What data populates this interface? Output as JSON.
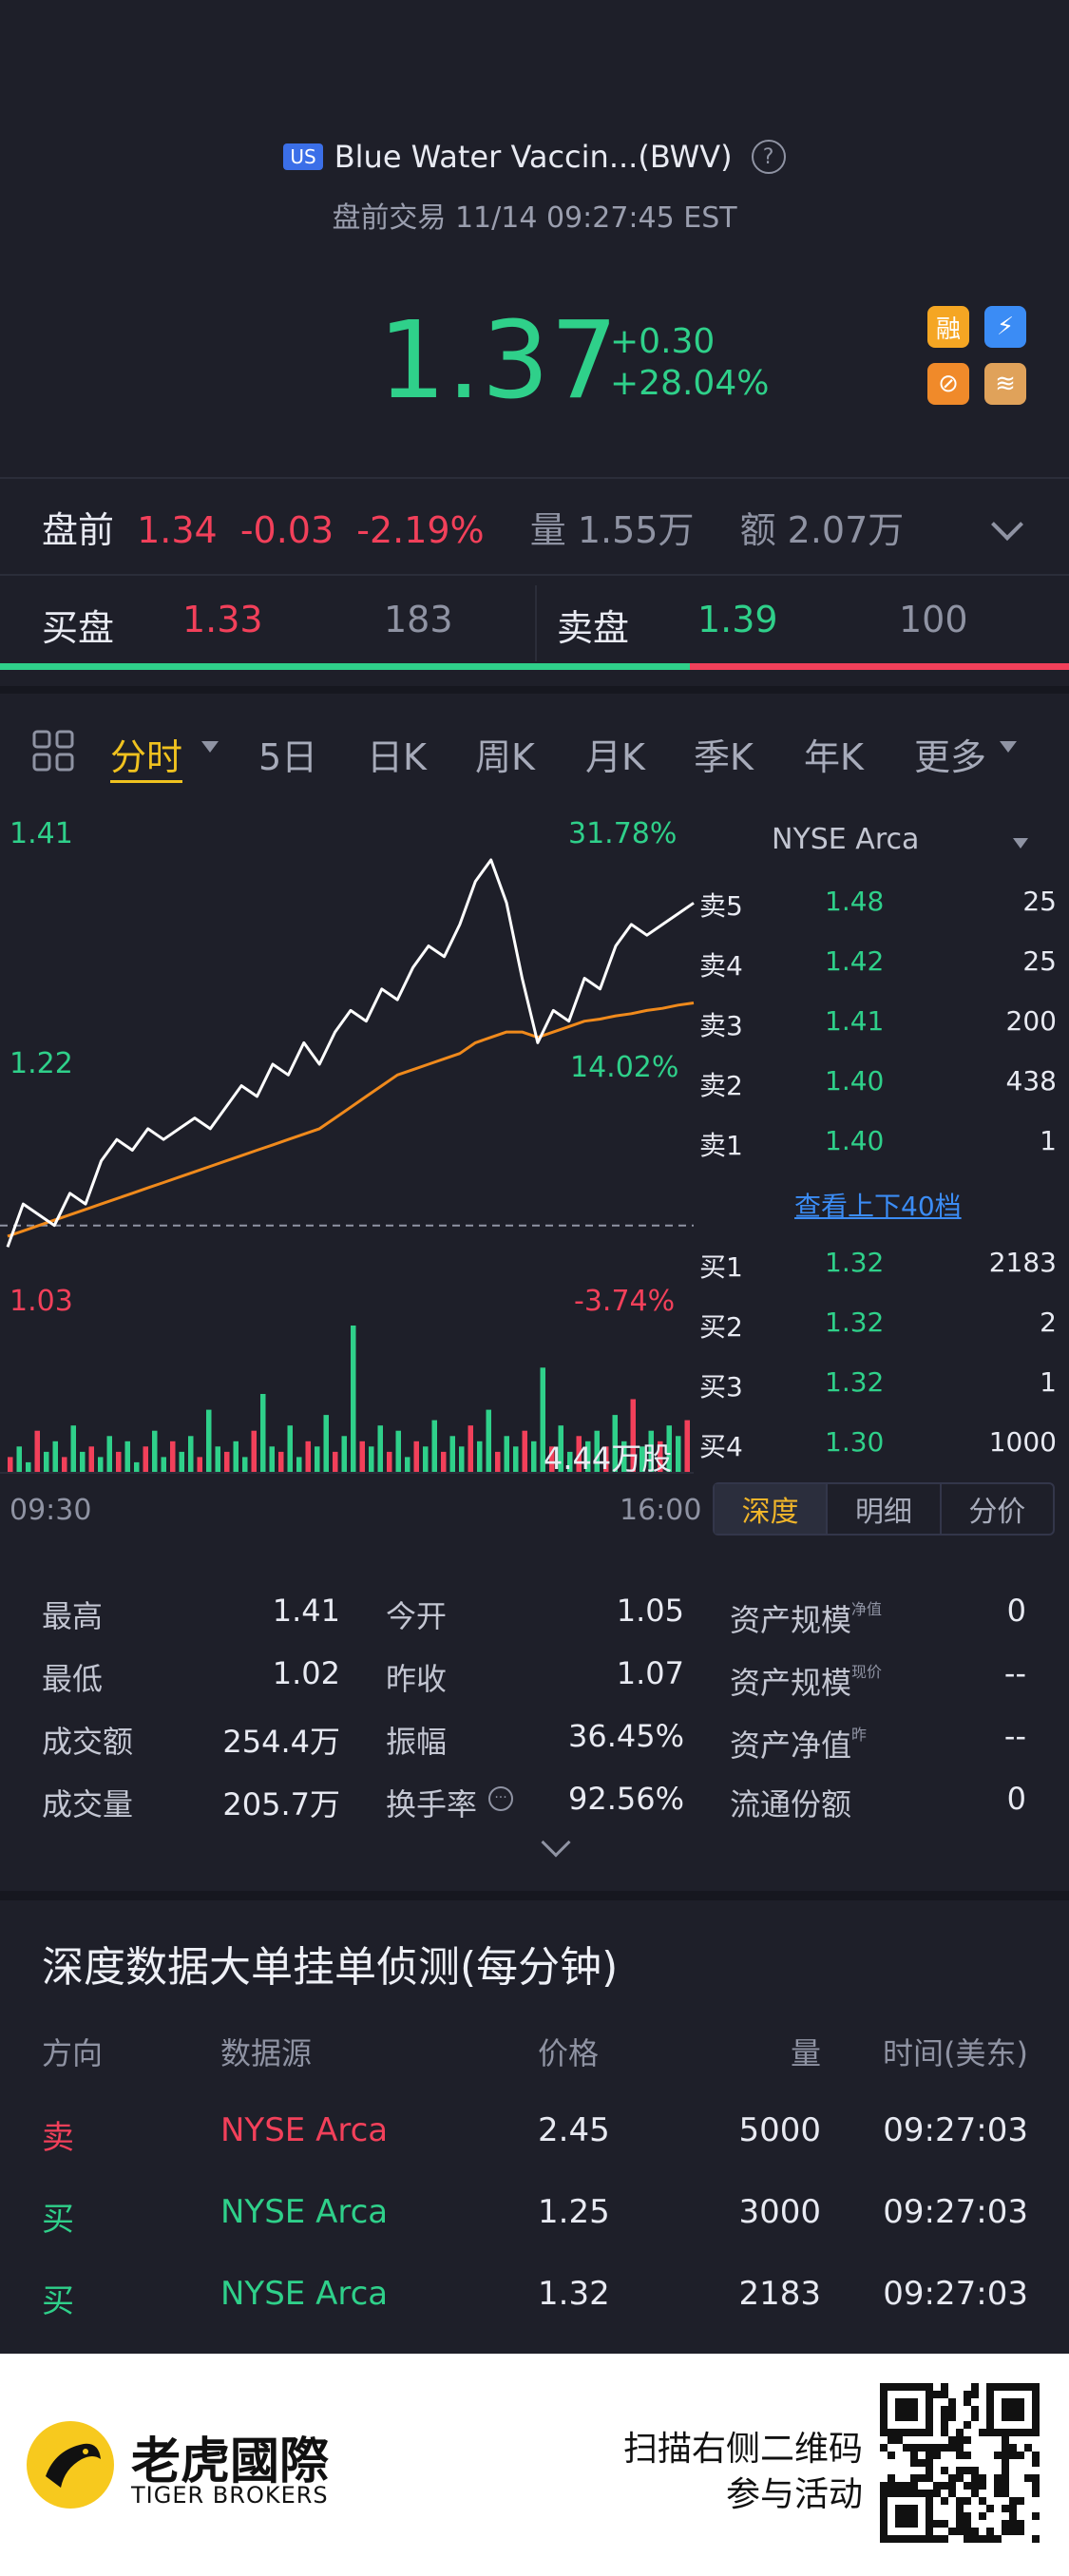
{
  "header": {
    "market_badge": "US",
    "title": "Blue Water Vaccin...(BWV)",
    "help_glyph": "?",
    "subtitle": "盘前交易 11/14 09:27:45 EST"
  },
  "quote": {
    "price": "1.37",
    "change": "+0.30",
    "change_pct": "+28.04%",
    "badges": [
      {
        "icon": "margin-icon",
        "text": "融",
        "color": "#f5a623"
      },
      {
        "icon": "lightning-icon",
        "text": "⚡",
        "color": "#3b8cf5"
      },
      {
        "icon": "no-short-icon",
        "text": "⊘",
        "color": "#f08a2a"
      },
      {
        "icon": "layers-icon",
        "text": "≋",
        "color": "#e0a25a"
      }
    ]
  },
  "premarket": {
    "label": "盘前",
    "price": "1.34",
    "change": "-0.03",
    "change_pct": "-2.19%",
    "volume": "量 1.55万",
    "amount": "额 2.07万"
  },
  "bid_ask": {
    "bid_label": "买盘",
    "bid_price": "1.33",
    "bid_qty": "183",
    "ask_label": "卖盘",
    "ask_price": "1.39",
    "ask_qty": "100",
    "bid_ratio": 0.645
  },
  "tabs": {
    "grid_icon": "grid-icon",
    "items": [
      "分时",
      "5日",
      "日K",
      "周K",
      "月K",
      "季K",
      "年K",
      "更多"
    ],
    "active": "分时"
  },
  "chart_labels": {
    "y_high": "1.41",
    "pct_high": "31.78%",
    "y_mid": "1.22",
    "pct_mid": "14.02%",
    "y_low": "1.03",
    "pct_low": "-3.74%",
    "volume": "4.44万股",
    "time_start": "09:30",
    "time_end": "16:00"
  },
  "chart_data": {
    "type": "line",
    "x_range": [
      "09:30",
      "16:00"
    ],
    "ylim": [
      1.03,
      1.41
    ],
    "prev_close": 1.07,
    "series": [
      {
        "values": [
          1.05,
          1.09,
          1.08,
          1.07,
          1.1,
          1.09,
          1.13,
          1.15,
          1.14,
          1.16,
          1.15,
          1.16,
          1.17,
          1.16,
          1.18,
          1.2,
          1.19,
          1.22,
          1.21,
          1.24,
          1.22,
          1.25,
          1.27,
          1.26,
          1.29,
          1.28,
          1.31,
          1.33,
          1.32,
          1.35,
          1.39,
          1.41,
          1.37,
          1.3,
          1.24,
          1.27,
          1.26,
          1.3,
          1.29,
          1.33,
          1.35,
          1.34,
          1.35,
          1.36,
          1.37
        ]
      },
      {
        "values": [
          1.06,
          1.065,
          1.07,
          1.075,
          1.08,
          1.085,
          1.09,
          1.095,
          1.1,
          1.105,
          1.11,
          1.115,
          1.12,
          1.125,
          1.13,
          1.135,
          1.14,
          1.145,
          1.15,
          1.155,
          1.16,
          1.17,
          1.18,
          1.19,
          1.2,
          1.21,
          1.215,
          1.22,
          1.225,
          1.23,
          1.24,
          1.245,
          1.25,
          1.25,
          1.245,
          1.25,
          1.255,
          1.26,
          1.262,
          1.265,
          1.267,
          1.27,
          1.272,
          1.275,
          1.277
        ]
      }
    ],
    "volume": [
      3,
      5,
      2,
      8,
      4,
      6,
      3,
      9,
      4,
      5,
      3,
      7,
      4,
      6,
      2,
      5,
      8,
      3,
      6,
      4,
      7,
      3,
      12,
      5,
      4,
      6,
      3,
      8,
      15,
      5,
      4,
      9,
      3,
      6,
      5,
      11,
      4,
      7,
      28,
      6,
      5,
      9,
      4,
      8,
      3,
      6,
      5,
      10,
      4,
      7,
      5,
      9,
      6,
      12,
      4,
      7,
      5,
      8,
      6,
      20,
      5,
      9,
      4,
      7,
      6,
      8,
      5,
      11,
      6,
      14,
      5,
      8,
      6,
      9,
      7,
      10
    ]
  },
  "order_book": {
    "exchange": "NYSE Arca",
    "asks": [
      {
        "label": "卖5",
        "price": "1.48",
        "qty": "25"
      },
      {
        "label": "卖4",
        "price": "1.42",
        "qty": "25"
      },
      {
        "label": "卖3",
        "price": "1.41",
        "qty": "200"
      },
      {
        "label": "卖2",
        "price": "1.40",
        "qty": "438"
      },
      {
        "label": "卖1",
        "price": "1.40",
        "qty": "1"
      }
    ],
    "more_link": "查看上下40档",
    "bids": [
      {
        "label": "买1",
        "price": "1.32",
        "qty": "2183"
      },
      {
        "label": "买2",
        "price": "1.32",
        "qty": "2"
      },
      {
        "label": "买3",
        "price": "1.32",
        "qty": "1"
      },
      {
        "label": "买4",
        "price": "1.30",
        "qty": "1000"
      }
    ],
    "tabs": [
      "深度",
      "明细",
      "分价"
    ]
  },
  "stats": {
    "high_label": "最高",
    "high": "1.41",
    "open_label": "今开",
    "open": "1.05",
    "low_label": "最低",
    "low": "1.02",
    "prev_label": "昨收",
    "prev": "1.07",
    "amount_label": "成交额",
    "amount": "254.4万",
    "amp_label": "振幅",
    "amp": "36.45%",
    "vol_label": "成交量",
    "vol": "205.7万",
    "turnover_label": "换手率",
    "turnover": "92.56%",
    "asset1_label": "资产规模",
    "asset1_sup": "净值",
    "asset1": "0",
    "asset2_label": "资产规模",
    "asset2_sup": "现价",
    "asset2": "--",
    "nav_label": "资产净值",
    "nav_sup": "昨",
    "nav": "--",
    "float_label": "流通份额",
    "float": "0"
  },
  "depth_section": {
    "title": "深度数据大单挂单侦测(每分钟)",
    "headers": [
      "方向",
      "数据源",
      "价格",
      "量",
      "时间(美东)"
    ],
    "rows": [
      {
        "dir": "卖",
        "src": "NYSE Arca",
        "price": "2.45",
        "qty": "5000",
        "time": "09:27:03",
        "side": "sell"
      },
      {
        "dir": "买",
        "src": "NYSE Arca",
        "price": "1.25",
        "qty": "3000",
        "time": "09:27:03",
        "side": "buy"
      },
      {
        "dir": "买",
        "src": "NYSE Arca",
        "price": "1.32",
        "qty": "2183",
        "time": "09:27:03",
        "side": "buy"
      }
    ]
  },
  "footer": {
    "logo_cn": "老虎國際",
    "logo_en": "TIGER BROKERS",
    "cta_line1": "扫描右侧二维码",
    "cta_line2": "参与活动"
  }
}
